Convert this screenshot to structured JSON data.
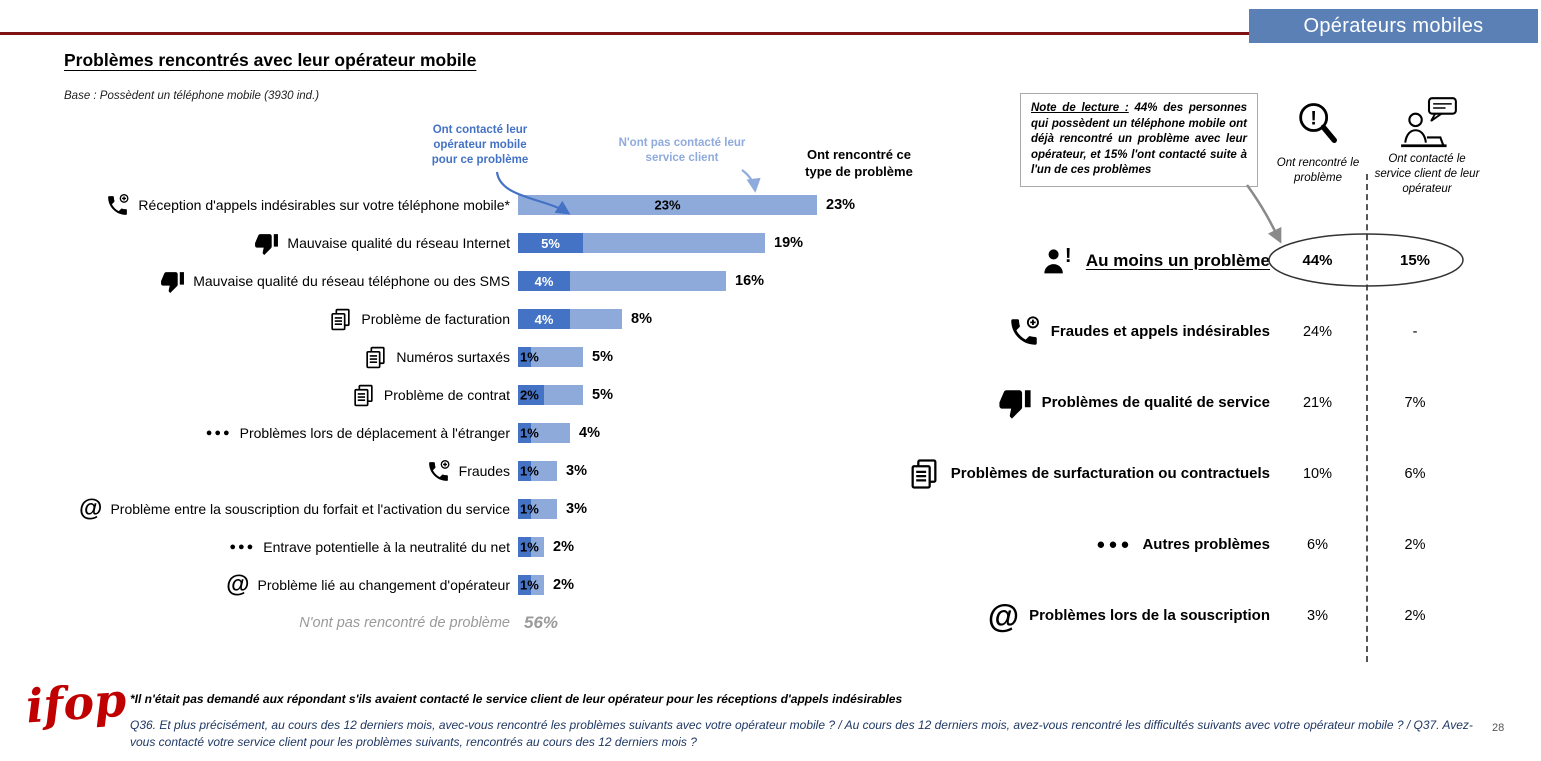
{
  "page": {
    "tag_banner": "Opérateurs mobiles",
    "title": "Problèmes rencontrés avec leur opérateur mobile",
    "base": "Base : Possèdent un téléphone mobile (3930 ind.)",
    "page_number": "28"
  },
  "colors": {
    "dark_bar": "#4472C4",
    "light_bar": "#8EAADB",
    "banner_bg": "#5B80B6",
    "top_line": "#7F1212",
    "annotation_contacted": "#4472C4",
    "annotation_not_contacted": "#8FAADC",
    "muted_gray": "#9A9A9A",
    "logo_red": "#C00000"
  },
  "chart_data": {
    "type": "bar",
    "orientation": "horizontal",
    "unit": "%",
    "xlim": [
      0,
      25
    ],
    "grid": false,
    "legend_position": "annotations-above",
    "categories": [
      "Réception d'appels indésirables sur votre téléphone mobile*",
      "Mauvaise qualité du réseau Internet",
      "Mauvaise qualité du réseau téléphone ou des SMS",
      "Problème de facturation",
      "Numéros surtaxés",
      "Problème de contrat",
      "Problèmes lors de déplacement à l'étranger",
      "Fraudes",
      "Problème entre la souscription du forfait et l'activation du service",
      "Entrave potentielle à la neutralité du net",
      "Problème lié au changement d'opérateur"
    ],
    "category_icons": [
      "phone-plus-icon",
      "thumbs-down-icon",
      "thumbs-down-icon",
      "documents-icon",
      "documents-icon",
      "documents-icon",
      "dots-icon",
      "phone-plus-icon",
      "at-icon",
      "dots-icon",
      "at-icon"
    ],
    "series": [
      {
        "name": "Ont contacté leur opérateur mobile pour ce problème",
        "color": "#4472C4",
        "values": [
          null,
          5,
          4,
          4,
          1,
          2,
          1,
          1,
          1,
          1,
          1
        ]
      },
      {
        "name": "Ont rencontré ce type de problème",
        "color": "#8EAADB",
        "values": [
          23,
          19,
          16,
          8,
          5,
          5,
          4,
          3,
          3,
          2,
          2
        ]
      }
    ],
    "annotations": {
      "contacted": "Ont contacté leur opérateur mobile pour ce problème",
      "not_contacted": "N'ont pas contacté leur service client",
      "encountered": "Ont rencontré ce type de problème"
    },
    "no_problem": {
      "label": "N'ont pas rencontré de problème",
      "value": 56,
      "value_label": "56%"
    }
  },
  "note_box": {
    "lead": "Note de lecture :",
    "text": " 44% des personnes qui possèdent un téléphone mobile ont déjà rencontré un problème avec leur opérateur, et 15% l'ont contacté suite à l'un de ces problèmes"
  },
  "summary": {
    "col1_header": "Ont rencontré le problème",
    "col2_header": "Ont contacté le service client de leur opérateur",
    "rows": [
      {
        "icon": "person-exclamation-icon",
        "label": "Au moins un problème",
        "col1": "44%",
        "col2": "15%",
        "highlight": true
      },
      {
        "icon": "phone-plus-icon",
        "label": "Fraudes et appels indésirables",
        "col1": "24%",
        "col2": "-"
      },
      {
        "icon": "thumbs-down-icon",
        "label": "Problèmes de qualité de service",
        "col1": "21%",
        "col2": "7%"
      },
      {
        "icon": "documents-icon",
        "label": "Problèmes de surfacturation ou  contractuels",
        "col1": "10%",
        "col2": "6%"
      },
      {
        "icon": "dots-icon",
        "label": "Autres problèmes",
        "col1": "6%",
        "col2": "2%"
      },
      {
        "icon": "at-icon",
        "label": "Problèmes lors de la souscription",
        "col1": "3%",
        "col2": "2%"
      }
    ]
  },
  "footer": {
    "logo": "ifop",
    "footnote1": "*Il n'était pas demandé aux répondant s'ils avaient contacté le service client de leur opérateur pour les réceptions d'appels indésirables",
    "footnote2": "Q36. Et plus précisément, au cours des 12 derniers mois, avec-vous rencontré les problèmes suivants avec votre opérateur mobile ? / Au cours des 12 derniers mois, avez-vous rencontré les difficultés suivants avec votre opérateur mobile ? / Q37. Avez-vous contacté votre service client pour les problèmes suivants, rencontrés au cours des 12 derniers mois ?"
  }
}
